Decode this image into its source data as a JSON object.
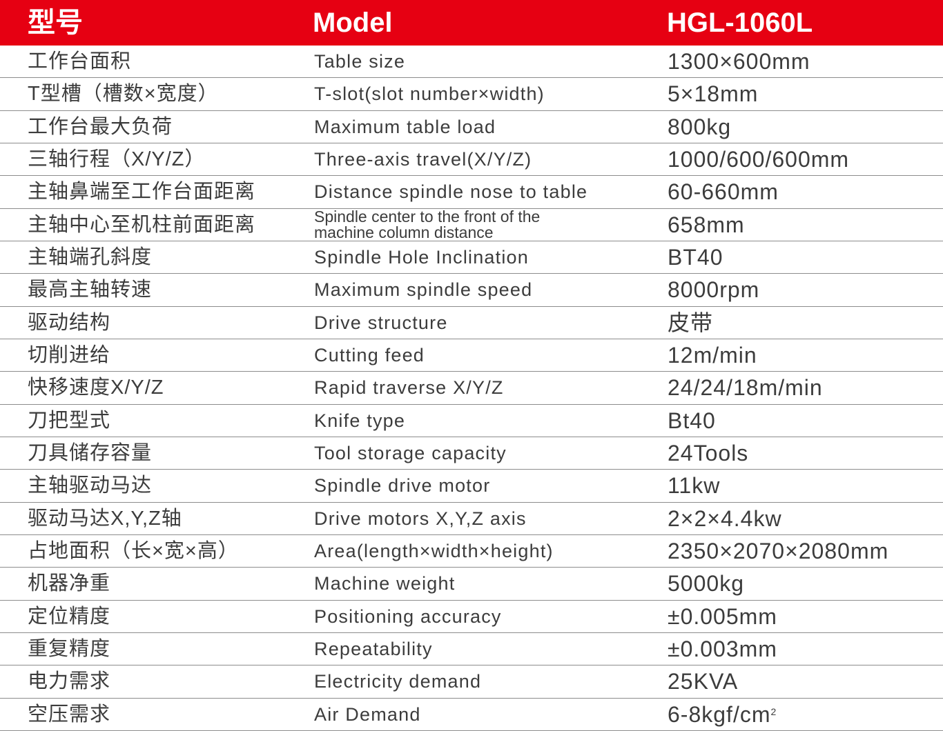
{
  "header": {
    "col1": "型号",
    "col2": "Model",
    "col3": "HGL-1060L",
    "background": "#e60012"
  },
  "rows": [
    {
      "zh": "工作台面积",
      "en": "Table size",
      "value": "1300×600mm"
    },
    {
      "zh": "T型槽（槽数×宽度）",
      "en": "T-slot(slot number×width)",
      "value": "5×18mm"
    },
    {
      "zh": "工作台最大负荷",
      "en": "Maximum table load",
      "value": "800kg"
    },
    {
      "zh": "三轴行程（X/Y/Z）",
      "en": "Three-axis travel(X/Y/Z)",
      "value": "1000/600/600mm"
    },
    {
      "zh": "主轴鼻端至工作台面距离",
      "en": "Distance spindle nose to table",
      "value": "60-660mm"
    },
    {
      "zh": "主轴中心至机柱前面距离",
      "en": "Spindle center to the front of the machine column distance",
      "value": "658mm"
    },
    {
      "zh": "主轴端孔斜度",
      "en": "Spindle Hole Inclination",
      "value": "BT40"
    },
    {
      "zh": "最高主轴转速",
      "en": "Maximum spindle speed",
      "value": "8000rpm"
    },
    {
      "zh": "驱动结构",
      "en": "Drive structure",
      "value": "皮带"
    },
    {
      "zh": "切削进给",
      "en": "Cutting feed",
      "value": "12m/min"
    },
    {
      "zh": "快移速度X/Y/Z",
      "en": "Rapid traverse X/Y/Z",
      "value": "24/24/18m/min"
    },
    {
      "zh": "刀把型式",
      "en": "Knife type",
      "value": "Bt40"
    },
    {
      "zh": "刀具储存容量",
      "en": "Tool storage capacity",
      "value": "24Tools"
    },
    {
      "zh": "主轴驱动马达",
      "en": "Spindle drive motor",
      "value": "11kw"
    },
    {
      "zh": "驱动马达X,Y,Z轴",
      "en": "Drive motors X,Y,Z axis",
      "value": "2×2×4.4kw"
    },
    {
      "zh": "占地面积（长×宽×高）",
      "en": "Area(length×width×height)",
      "value": "2350×2070×2080mm"
    },
    {
      "zh": "机器净重",
      "en": "Machine weight",
      "value": "5000kg"
    },
    {
      "zh": "定位精度",
      "en": "Positioning accuracy",
      "value": "±0.005mm"
    },
    {
      "zh": "重复精度",
      "en": "Repeatability",
      "value": "±0.003mm"
    },
    {
      "zh": "电力需求",
      "en": "Electricity demand",
      "value": "25KVA"
    },
    {
      "zh": "空压需求",
      "en": "Air Demand",
      "value": "6-8kgf/cm",
      "sup": "2"
    }
  ]
}
